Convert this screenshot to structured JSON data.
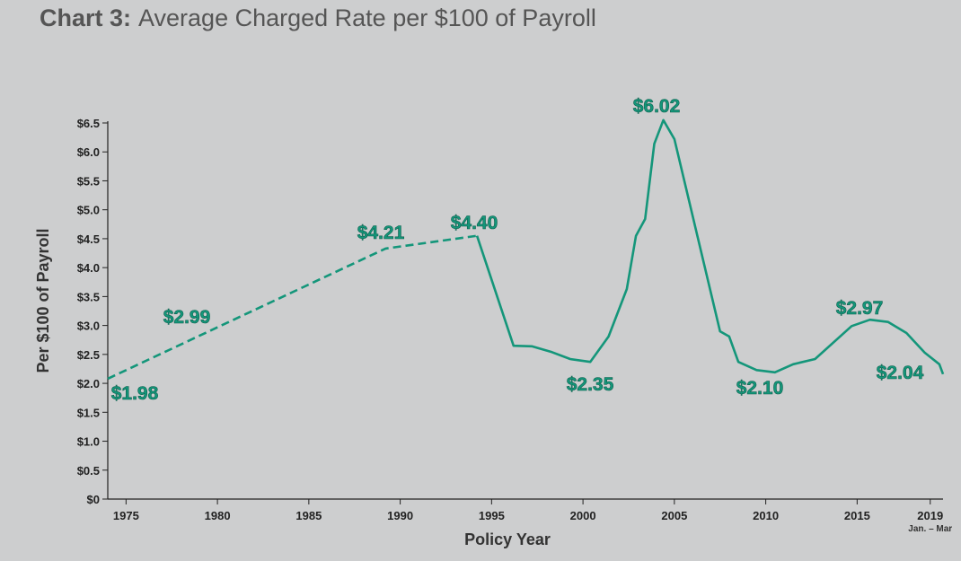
{
  "chart_data": {
    "type": "line",
    "title_label": "Chart 3:",
    "title": "Average Charged Rate per $100 of Payroll",
    "x_label": "Policy Year",
    "y_label": "Per $100 of Payroll",
    "x_note": "Jan. – Mar",
    "color": "#14967a",
    "series": [
      {
        "dashed": true,
        "x": [
          1974,
          1989.2,
          1994.2
        ],
        "values": [
          2.08,
          4.33,
          4.55
        ]
      },
      {
        "dashed": false,
        "x": [
          1994.2,
          1996.2,
          1997.2,
          1998.3,
          1999.3,
          2000.4,
          2001.4,
          2002.4,
          2002.9,
          2003.4,
          2003.9,
          2004.4,
          2005.0,
          2007.5,
          2008.0,
          2008.5,
          2009.5,
          2010.5,
          2011.5,
          2012.7,
          2014.7,
          2015.7,
          2016.7,
          2017.7,
          2018.7,
          2019.5,
          2019.7
        ],
        "values": [
          4.55,
          2.65,
          2.64,
          2.54,
          2.42,
          2.37,
          2.81,
          3.63,
          4.55,
          4.84,
          6.14,
          6.55,
          6.22,
          2.9,
          2.81,
          2.37,
          2.23,
          2.19,
          2.33,
          2.42,
          2.99,
          3.1,
          3.06,
          2.87,
          2.53,
          2.33,
          2.16
        ]
      }
    ],
    "annotations": [
      "$1.98",
      "$2.99",
      "$4.21",
      "$4.40",
      "$6.02",
      "$2.35",
      "$2.10",
      "$2.97",
      "$2.04"
    ],
    "xlim": [
      1974,
      2019.7
    ],
    "xticks": [
      1975,
      1980,
      1985,
      1990,
      1995,
      2000,
      2005,
      2010,
      2015,
      2019
    ],
    "ylim": [
      0,
      6.5
    ],
    "yticks": [
      {
        "value": 0,
        "label": "$0"
      },
      {
        "value": 0.5,
        "label": "$0.5"
      },
      {
        "value": 1,
        "label": "$1.0"
      },
      {
        "value": 1.5,
        "label": "$1.5"
      },
      {
        "value": 2,
        "label": "$2.0"
      },
      {
        "value": 2.5,
        "label": "$2.5"
      },
      {
        "value": 3,
        "label": "$3.0"
      },
      {
        "value": 3.5,
        "label": "$3.5"
      },
      {
        "value": 4,
        "label": "$4.0"
      },
      {
        "value": 4.5,
        "label": "$4.5"
      },
      {
        "value": 5,
        "label": "$5.0"
      },
      {
        "value": 5.5,
        "label": "$5.5"
      },
      {
        "value": 6,
        "label": "$6.0"
      },
      {
        "value": 6.5,
        "label": "$6.5"
      }
    ],
    "grid": false
  }
}
